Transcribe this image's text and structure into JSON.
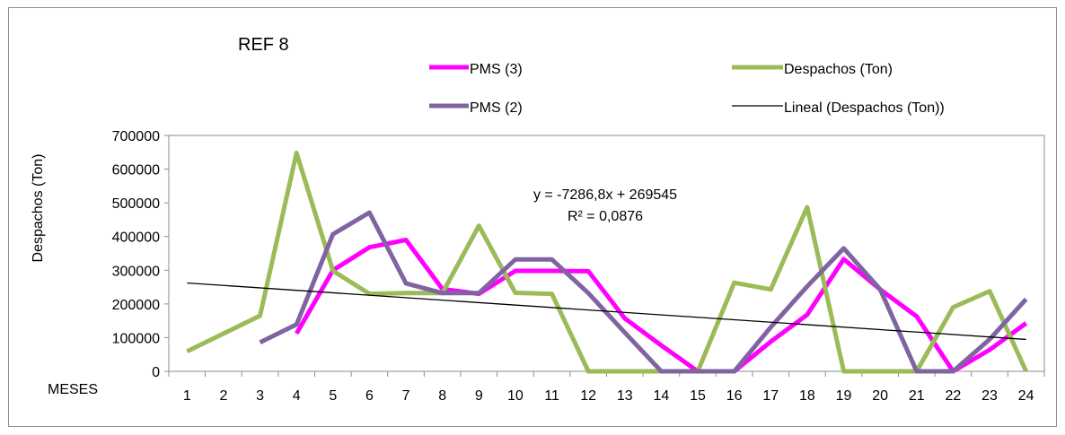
{
  "chart_data": {
    "type": "line",
    "title": "REF 8",
    "xlabel": "MESES",
    "ylabel": "Despachos (Ton)",
    "categories": [
      "1",
      "2",
      "3",
      "4",
      "5",
      "6",
      "7",
      "8",
      "9",
      "10",
      "11",
      "12",
      "13",
      "14",
      "15",
      "16",
      "17",
      "18",
      "19",
      "20",
      "21",
      "22",
      "23",
      "24"
    ],
    "ylim": [
      0,
      700000
    ],
    "yticks": [
      "0",
      "100000",
      "200000",
      "300000",
      "400000",
      "500000",
      "600000",
      "700000"
    ],
    "grid": "horizontal-none",
    "legend_position": "top",
    "series": [
      {
        "name": "PMS (3)",
        "color": "#ff00ff",
        "values": [
          null,
          null,
          null,
          112000,
          300000,
          368000,
          390000,
          244000,
          230000,
          298000,
          298000,
          297000,
          157000,
          77000,
          0,
          0,
          88000,
          168000,
          333000,
          243000,
          163000,
          0,
          64000,
          143000
        ]
      },
      {
        "name": "Despachos (Ton)",
        "color": "#9bbb59",
        "values": [
          59000,
          112000,
          165000,
          648000,
          298000,
          230000,
          232000,
          232000,
          432000,
          233000,
          230000,
          0,
          0,
          0,
          0,
          263000,
          243000,
          487000,
          0,
          0,
          0,
          190000,
          238000,
          0
        ]
      },
      {
        "name": "PMS (2)",
        "color": "#8064a2",
        "values": [
          null,
          null,
          86000,
          139000,
          407000,
          471000,
          261000,
          232000,
          232000,
          332000,
          332000,
          232000,
          115000,
          0,
          0,
          0,
          131000,
          252000,
          365000,
          243000,
          0,
          0,
          95000,
          214000
        ]
      }
    ],
    "trendline": {
      "name": "Lineal (Despachos (Ton))",
      "color": "#000000",
      "slope": -7286.8,
      "intercept": 269545,
      "equation": "y = -7286,8x + 269545",
      "r2": "R² = 0,0876"
    }
  }
}
